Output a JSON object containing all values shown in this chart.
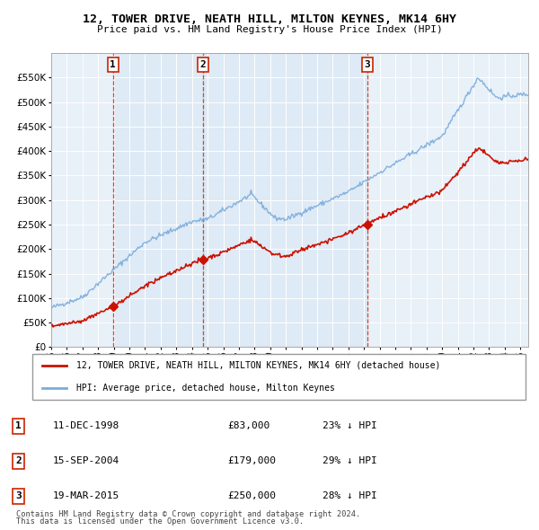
{
  "title1": "12, TOWER DRIVE, NEATH HILL, MILTON KEYNES, MK14 6HY",
  "title2": "Price paid vs. HM Land Registry's House Price Index (HPI)",
  "legend_line1": "12, TOWER DRIVE, NEATH HILL, MILTON KEYNES, MK14 6HY (detached house)",
  "legend_line2": "HPI: Average price, detached house, Milton Keynes",
  "footer1": "Contains HM Land Registry data © Crown copyright and database right 2024.",
  "footer2": "This data is licensed under the Open Government Licence v3.0.",
  "sales": [
    {
      "num": 1,
      "date": "11-DEC-1998",
      "price": 83000,
      "year": 1998.95,
      "label": "23% ↓ HPI"
    },
    {
      "num": 2,
      "date": "15-SEP-2004",
      "price": 179000,
      "year": 2004.71,
      "label": "29% ↓ HPI"
    },
    {
      "num": 3,
      "date": "19-MAR-2015",
      "price": 250000,
      "year": 2015.21,
      "label": "28% ↓ HPI"
    }
  ],
  "hpi_color": "#7aabdb",
  "price_color": "#cc1100",
  "dashed_color": "#cc2200",
  "plot_bg": "#e8f0f8",
  "shade_color": "#ccddef",
  "ylim": [
    0,
    600000
  ],
  "yticks": [
    0,
    50000,
    100000,
    150000,
    200000,
    250000,
    300000,
    350000,
    400000,
    450000,
    500000,
    550000
  ],
  "xlim_start": 1995.0,
  "xlim_end": 2025.5
}
